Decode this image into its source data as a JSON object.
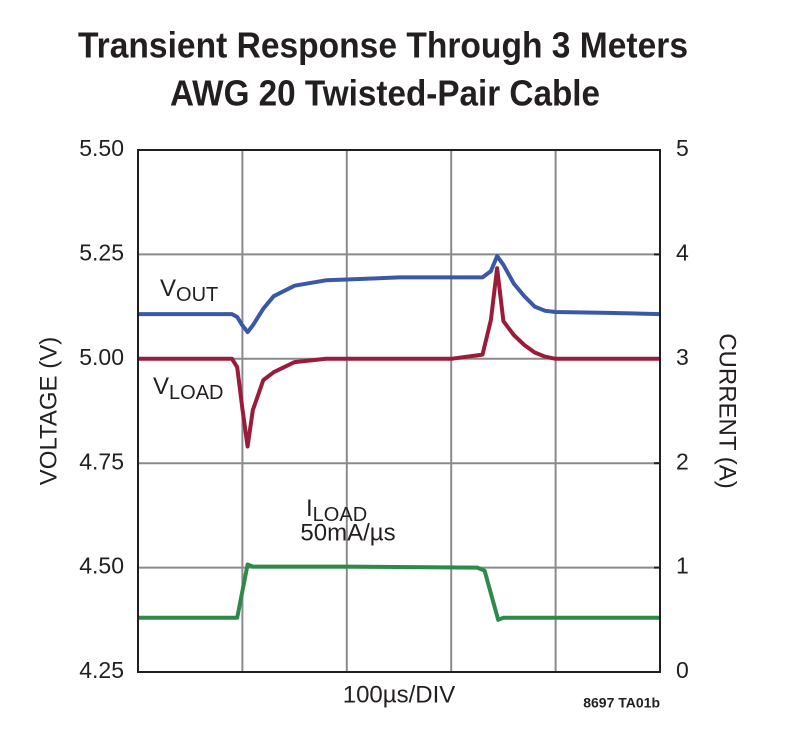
{
  "chart_data": {
    "type": "line",
    "title": [
      "Transient Response Through 3 Meters",
      "AWG 20 Twisted-Pair Cable"
    ],
    "ylabel": "VOLTAGE (V)",
    "y2label": "CURRENT (A)",
    "xlabel": "100µs/DIV",
    "footnote": "8697 TA01b",
    "grid": true,
    "xlim": [
      0,
      5
    ],
    "ylim": [
      4.25,
      5.5
    ],
    "yticks": [
      4.25,
      {
        "value": 4.5,
        "label": "4.50"
      },
      4.75,
      {
        "value": 5.0,
        "label": "5.00"
      },
      5.25,
      {
        "value": 5.5,
        "label": "5.50"
      }
    ],
    "y2lim": [
      0,
      5
    ],
    "y2ticks": [
      0,
      1,
      2,
      3,
      4,
      5
    ],
    "series": [
      {
        "name": "V",
        "subscript": "OUT",
        "color": "#3a57a8",
        "x": [
          0,
          0.9,
          0.95,
          1.0,
          1.05,
          1.1,
          1.2,
          1.3,
          1.5,
          1.8,
          2.0,
          2.5,
          3.0,
          3.3,
          3.38,
          3.44,
          3.5,
          3.6,
          3.7,
          3.8,
          3.9,
          4.0,
          4.5,
          5.0
        ],
        "values": [
          5.107,
          5.107,
          5.1,
          5.08,
          5.064,
          5.08,
          5.12,
          5.15,
          5.175,
          5.188,
          5.19,
          5.195,
          5.195,
          5.195,
          5.21,
          5.246,
          5.225,
          5.18,
          5.15,
          5.125,
          5.115,
          5.112,
          5.11,
          5.107
        ]
      },
      {
        "name": "V",
        "subscript": "LOAD",
        "color": "#9b1b3a",
        "x": [
          0,
          0.9,
          0.95,
          1.0,
          1.05,
          1.1,
          1.2,
          1.3,
          1.5,
          1.8,
          2.0,
          2.5,
          3.0,
          3.3,
          3.38,
          3.44,
          3.5,
          3.6,
          3.7,
          3.8,
          3.9,
          4.0,
          4.5,
          5.0
        ],
        "values": [
          5.0,
          5.0,
          4.98,
          4.88,
          4.79,
          4.877,
          4.949,
          4.968,
          4.992,
          5.0,
          5.0,
          5.0,
          5.0,
          5.01,
          5.093,
          5.217,
          5.09,
          5.057,
          5.033,
          5.015,
          5.005,
          5.0,
          5.0,
          5.0
        ]
      },
      {
        "name": "I",
        "subscript": "LOAD",
        "note": "50mA/µs",
        "color": "#2e8a4a",
        "axis": "y2",
        "x": [
          0,
          0.95,
          1.05,
          1.1,
          2.0,
          3.25,
          3.32,
          3.45,
          3.5,
          4.0,
          5.0
        ],
        "values": [
          0.52,
          0.52,
          1.03,
          1.01,
          1.01,
          1.0,
          0.97,
          0.5,
          0.52,
          0.52,
          0.52
        ]
      }
    ]
  }
}
